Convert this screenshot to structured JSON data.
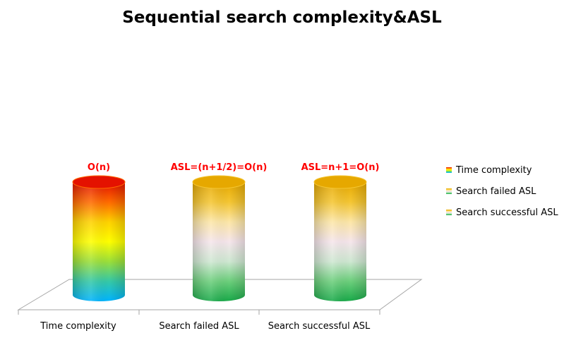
{
  "chart_data": {
    "type": "bar",
    "title": "Sequential search  complexity&ASL",
    "categories": [
      "Time  complexity",
      "Search failed ASL",
      "Search successful ASL"
    ],
    "series": [
      {
        "name": "Time  complexity",
        "values": [
          1,
          null,
          null
        ],
        "data_labels": [
          "O(n)",
          null,
          null
        ]
      },
      {
        "name": "Search failed ASL",
        "values": [
          null,
          1,
          null
        ],
        "data_labels": [
          null,
          "ASL=(n+1/2)=O(n)",
          null
        ]
      },
      {
        "name": "Search successful ASL",
        "values": [
          null,
          null,
          1
        ],
        "data_labels": [
          null,
          null,
          "ASL=n+1=O(n)"
        ]
      }
    ],
    "ylim": [
      0,
      1
    ],
    "grid": false,
    "legend_position": "right"
  },
  "colors": {
    "series_gradients": [
      [
        "#e41200",
        "#ff6a00",
        "#ffd200",
        "#ffff00",
        "#9be03a",
        "#35c9a8",
        "#00b4ff"
      ],
      [
        "#e6a800",
        "#f5c632",
        "#fde7a8",
        "#f6e6ec",
        "#cfe8d2",
        "#6ccf7c",
        "#1aaa4a"
      ],
      [
        "#e6a800",
        "#f5c632",
        "#fde7a8",
        "#f6e6ec",
        "#cfe8d2",
        "#6ccf7c",
        "#1aaa4a"
      ]
    ],
    "label_color": "#ff0000"
  }
}
